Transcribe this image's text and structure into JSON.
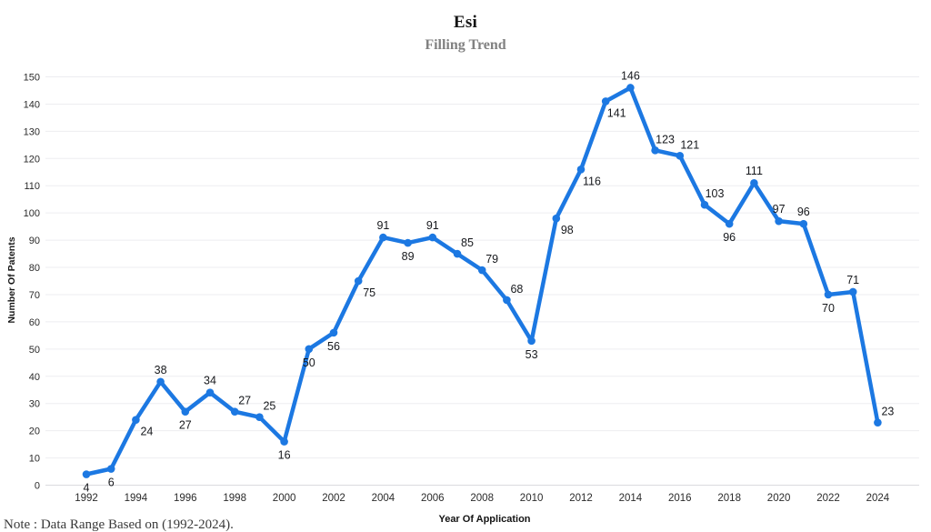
{
  "header": {
    "title": "Esi",
    "subtitle": "Filling Trend"
  },
  "footer": {
    "note": "Note : Data Range Based on (1992-2024)."
  },
  "chart_data": {
    "type": "line",
    "title": "Esi",
    "subtitle": "Filling Trend",
    "xlabel": "Year Of Application",
    "ylabel": "Number Of Patents",
    "ylim": [
      0,
      150
    ],
    "ytick_step": 10,
    "xtick_step": 2,
    "grid": "horizontal",
    "legend": "none",
    "line_color": "#1c78e2",
    "marker_color": "#1c78e2",
    "grid_color": "#ededf0",
    "axis_line_color": "#dadade",
    "tick_label_color": "#2b2b2b",
    "data_label_color": "#16181c",
    "x": [
      1992,
      1993,
      1994,
      1995,
      1996,
      1997,
      1998,
      1999,
      2000,
      2001,
      2002,
      2003,
      2004,
      2005,
      2006,
      2007,
      2008,
      2009,
      2010,
      2011,
      2012,
      2013,
      2014,
      2015,
      2016,
      2017,
      2018,
      2019,
      2020,
      2021,
      2022,
      2023,
      2024
    ],
    "values": [
      4,
      6,
      24,
      38,
      27,
      34,
      27,
      25,
      16,
      50,
      56,
      75,
      91,
      89,
      91,
      85,
      79,
      68,
      53,
      98,
      116,
      141,
      146,
      123,
      121,
      103,
      96,
      111,
      97,
      96,
      70,
      71,
      23
    ],
    "label_placements": [
      "below",
      "below",
      "below-right",
      "above",
      "below",
      "above",
      "above-right",
      "above-right",
      "below",
      "below",
      "below",
      "below-right",
      "above",
      "below",
      "above",
      "above-right",
      "above-right",
      "above-right",
      "below",
      "below-right",
      "below-right",
      "below-right",
      "above",
      "above-right",
      "above-right",
      "above-right",
      "below",
      "above",
      "above",
      "above",
      "below",
      "above",
      "above-right"
    ]
  }
}
